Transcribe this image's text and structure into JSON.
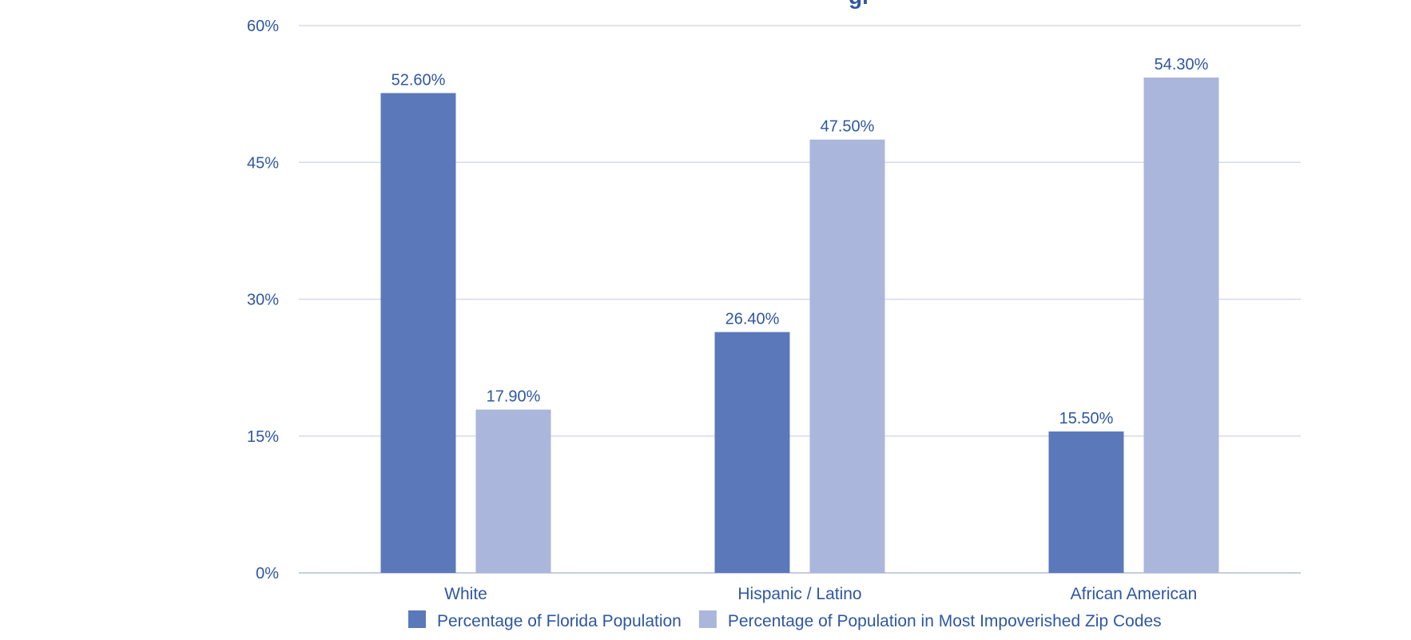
{
  "chart_data": {
    "type": "bar",
    "title_fragment": "gr",
    "categories": [
      "White",
      "Hispanic / Latino",
      "African American"
    ],
    "series": [
      {
        "name": "Percentage of Florida Population",
        "values": [
          52.6,
          26.4,
          15.5
        ],
        "labels": [
          "52.60%",
          "26.40%",
          "15.50%"
        ],
        "color": "#5b78bb"
      },
      {
        "name": "Percentage of Population in Most Impoverished Zip Codes",
        "values": [
          17.9,
          47.5,
          54.3
        ],
        "labels": [
          "17.90%",
          "47.50%",
          "54.30%"
        ],
        "color": "#abb6dc"
      }
    ],
    "ylim": [
      0,
      60
    ],
    "yticks": [
      0,
      15,
      30,
      45,
      60
    ],
    "ytick_labels": [
      "0%",
      "15%",
      "30%",
      "45%",
      "60%"
    ],
    "grid": true,
    "legend_position": "bottom",
    "text_color": "#2f57a0"
  }
}
